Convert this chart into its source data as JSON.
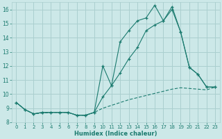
{
  "xlabel": "Humidex (Indice chaleur)",
  "bg_color": "#cce8e8",
  "grid_color": "#aacfcf",
  "line_color": "#1a7a6e",
  "xlim": [
    -0.5,
    23.5
  ],
  "ylim": [
    8.0,
    16.5
  ],
  "yticks": [
    8,
    9,
    10,
    11,
    12,
    13,
    14,
    15,
    16
  ],
  "xticks": [
    0,
    1,
    2,
    3,
    4,
    5,
    6,
    7,
    8,
    9,
    10,
    11,
    12,
    13,
    14,
    15,
    16,
    17,
    18,
    19,
    20,
    21,
    22,
    23
  ],
  "series1_x": [
    0,
    1,
    2,
    3,
    4,
    5,
    6,
    7,
    8,
    9,
    10,
    11,
    12,
    13,
    14,
    15,
    16,
    17,
    18,
    19,
    20,
    21,
    22,
    23
  ],
  "series1_y": [
    9.4,
    8.9,
    8.6,
    8.7,
    8.7,
    8.7,
    8.7,
    8.5,
    8.5,
    8.7,
    12.0,
    10.6,
    13.7,
    14.5,
    15.2,
    15.4,
    16.3,
    15.2,
    16.2,
    14.4,
    11.9,
    11.4,
    10.5,
    10.5
  ],
  "series2_x": [
    0,
    1,
    2,
    3,
    4,
    5,
    6,
    7,
    8,
    9,
    10,
    11,
    12,
    13,
    14,
    15,
    16,
    17,
    18,
    19,
    20,
    21,
    22,
    23
  ],
  "series2_y": [
    9.4,
    8.9,
    8.6,
    8.7,
    8.7,
    8.7,
    8.7,
    8.5,
    8.5,
    8.7,
    9.8,
    10.6,
    11.5,
    12.5,
    13.3,
    14.5,
    14.9,
    15.2,
    16.0,
    14.4,
    11.9,
    11.4,
    10.5,
    10.5
  ],
  "series3_x": [
    0,
    1,
    2,
    3,
    4,
    5,
    6,
    7,
    8,
    9,
    10,
    11,
    12,
    13,
    14,
    15,
    16,
    17,
    18,
    19,
    20,
    21,
    22,
    23
  ],
  "series3_y": [
    9.4,
    8.9,
    8.6,
    8.65,
    8.7,
    8.7,
    8.7,
    8.5,
    8.5,
    8.7,
    9.0,
    9.2,
    9.4,
    9.6,
    9.75,
    9.9,
    10.05,
    10.2,
    10.35,
    10.45,
    10.4,
    10.35,
    10.3,
    10.5
  ]
}
